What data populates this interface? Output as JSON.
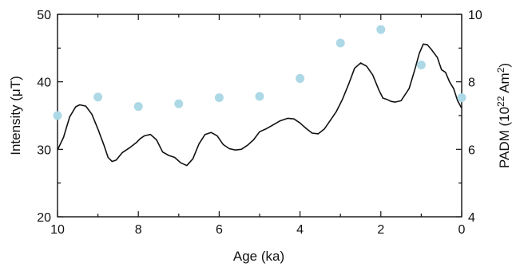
{
  "chart_data": {
    "type": "line",
    "xlabel": "Age (ka)",
    "ylabel_left": "Intensity (μT)",
    "ylabel_right_base": "PADM (10",
    "ylabel_right_exp": "22",
    "ylabel_right_unit": " Am",
    "ylabel_right_unit_exp": "2",
    "ylabel_right_close": ")",
    "xlim": [
      10,
      0
    ],
    "ylim_left": [
      20,
      50
    ],
    "ylim_right": [
      4,
      10
    ],
    "x_ticks": [
      10,
      8,
      6,
      4,
      2,
      0
    ],
    "y_left_ticks": [
      20,
      30,
      40,
      50
    ],
    "y_right_ticks": [
      4,
      6,
      8,
      10
    ],
    "grid": false,
    "colors": {
      "line": "#111111",
      "points": "#add8e6",
      "axes": "#111111"
    },
    "series": [
      {
        "type": "line",
        "axis": "left",
        "x": [
          10.0,
          9.85,
          9.7,
          9.55,
          9.45,
          9.3,
          9.15,
          9.0,
          8.85,
          8.75,
          8.65,
          8.55,
          8.4,
          8.2,
          8.05,
          7.95,
          7.85,
          7.7,
          7.55,
          7.4,
          7.25,
          7.1,
          6.95,
          6.8,
          6.65,
          6.5,
          6.35,
          6.2,
          6.05,
          5.9,
          5.75,
          5.6,
          5.45,
          5.3,
          5.15,
          5.0,
          4.85,
          4.7,
          4.5,
          4.3,
          4.15,
          4.0,
          3.85,
          3.7,
          3.55,
          3.4,
          3.25,
          3.1,
          2.95,
          2.8,
          2.65,
          2.5,
          2.35,
          2.2,
          2.05,
          1.95,
          1.85,
          1.75,
          1.65,
          1.5,
          1.3,
          1.15,
          1.05,
          0.95,
          0.85,
          0.75,
          0.6,
          0.5,
          0.4,
          0.3,
          0.2,
          0.1,
          0.0
        ],
        "y": [
          29.9,
          31.8,
          34.8,
          36.3,
          36.6,
          36.4,
          35.2,
          33.0,
          30.6,
          28.8,
          28.2,
          28.4,
          29.5,
          30.3,
          31.0,
          31.6,
          32.0,
          32.2,
          31.4,
          29.6,
          29.1,
          28.8,
          28.0,
          27.6,
          28.6,
          30.8,
          32.2,
          32.5,
          32.0,
          30.7,
          30.1,
          29.9,
          30.0,
          30.6,
          31.4,
          32.6,
          33.0,
          33.5,
          34.2,
          34.6,
          34.5,
          33.9,
          33.1,
          32.4,
          32.3,
          33.0,
          34.3,
          35.6,
          37.4,
          39.6,
          42.0,
          42.8,
          42.3,
          41.0,
          38.8,
          37.6,
          37.4,
          37.1,
          37.0,
          37.2,
          39.0,
          42.0,
          44.2,
          45.6,
          45.5,
          44.8,
          43.6,
          41.8,
          41.4,
          40.0,
          39.0,
          37.2,
          36.1
        ]
      },
      {
        "type": "scatter",
        "axis": "right",
        "x": [
          10,
          9,
          8,
          7,
          6,
          5,
          4,
          3,
          2,
          1,
          0
        ],
        "y": [
          7.0,
          7.55,
          7.27,
          7.35,
          7.53,
          7.57,
          8.1,
          9.15,
          9.55,
          8.5,
          7.53
        ]
      }
    ]
  }
}
